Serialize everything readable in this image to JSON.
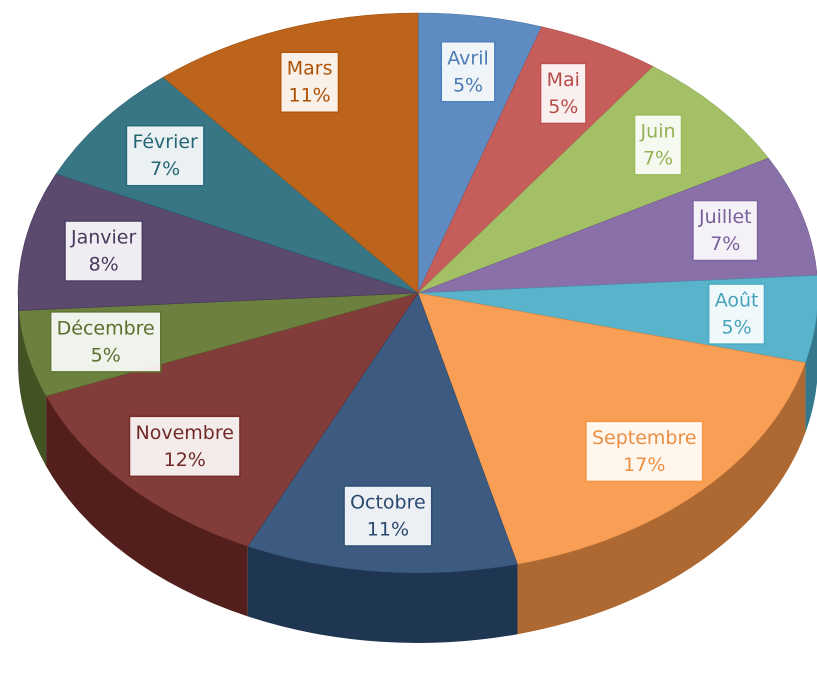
{
  "chart_data": {
    "type": "pie",
    "categories": [
      "Avril",
      "Mai",
      "Juin",
      "Juillet",
      "Août",
      "Septembre",
      "Octobre",
      "Novembre",
      "Décembre",
      "Janvier",
      "Février",
      "Mars"
    ],
    "values": [
      5,
      5,
      7,
      7,
      5,
      17,
      11,
      12,
      5,
      8,
      7,
      11
    ],
    "value_labels": [
      "5%",
      "5%",
      "7%",
      "7%",
      "5%",
      "17%",
      "11%",
      "12%",
      "5%",
      "8%",
      "7%",
      "11%"
    ],
    "colors": [
      "#4f81bd",
      "#c0504d",
      "#9bbb59",
      "#8064a2",
      "#4bacc6",
      "#f79646",
      "#2c4d75",
      "#772c2a",
      "#5f7530",
      "#4d3b62",
      "#276a7c",
      "#b65708"
    ]
  }
}
